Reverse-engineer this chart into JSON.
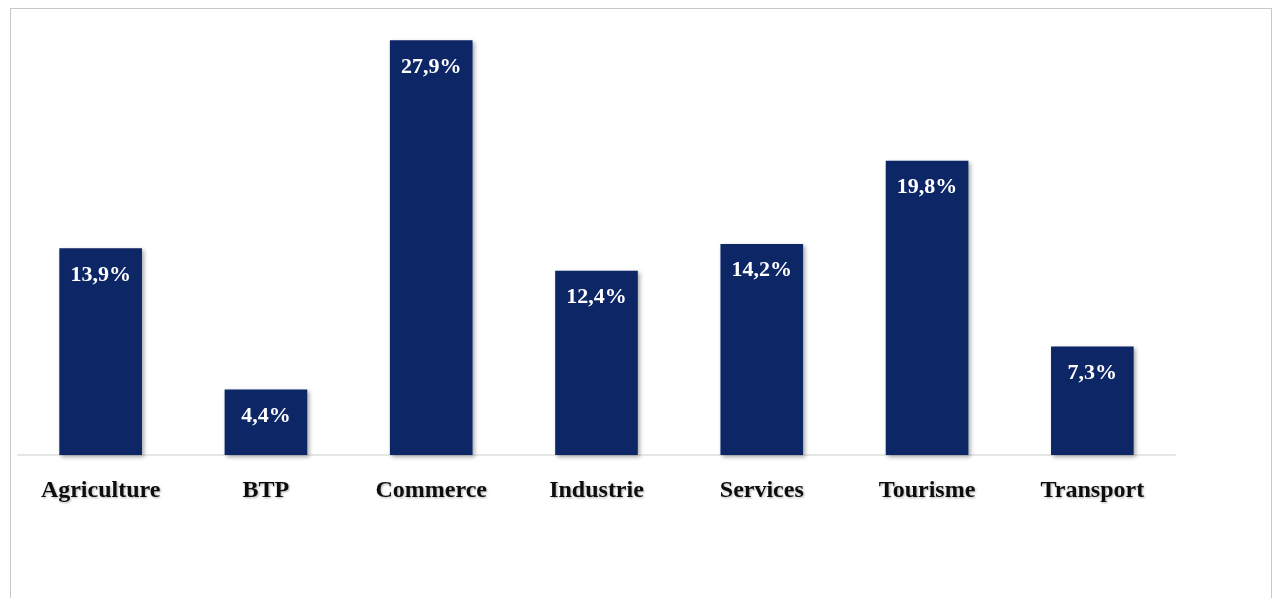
{
  "chart_data": {
    "type": "bar",
    "categories": [
      "Agriculture",
      "BTP",
      "Commerce",
      "Industrie",
      "Services",
      "Tourisme",
      "Transport"
    ],
    "values": [
      13.9,
      4.4,
      27.9,
      12.4,
      14.2,
      19.8,
      7.3
    ],
    "value_labels": [
      "13,9%",
      "4,4%",
      "27,9%",
      "12,4%",
      "14,2%",
      "19,8%",
      "7,3%"
    ],
    "color": "#0b2566"
  }
}
